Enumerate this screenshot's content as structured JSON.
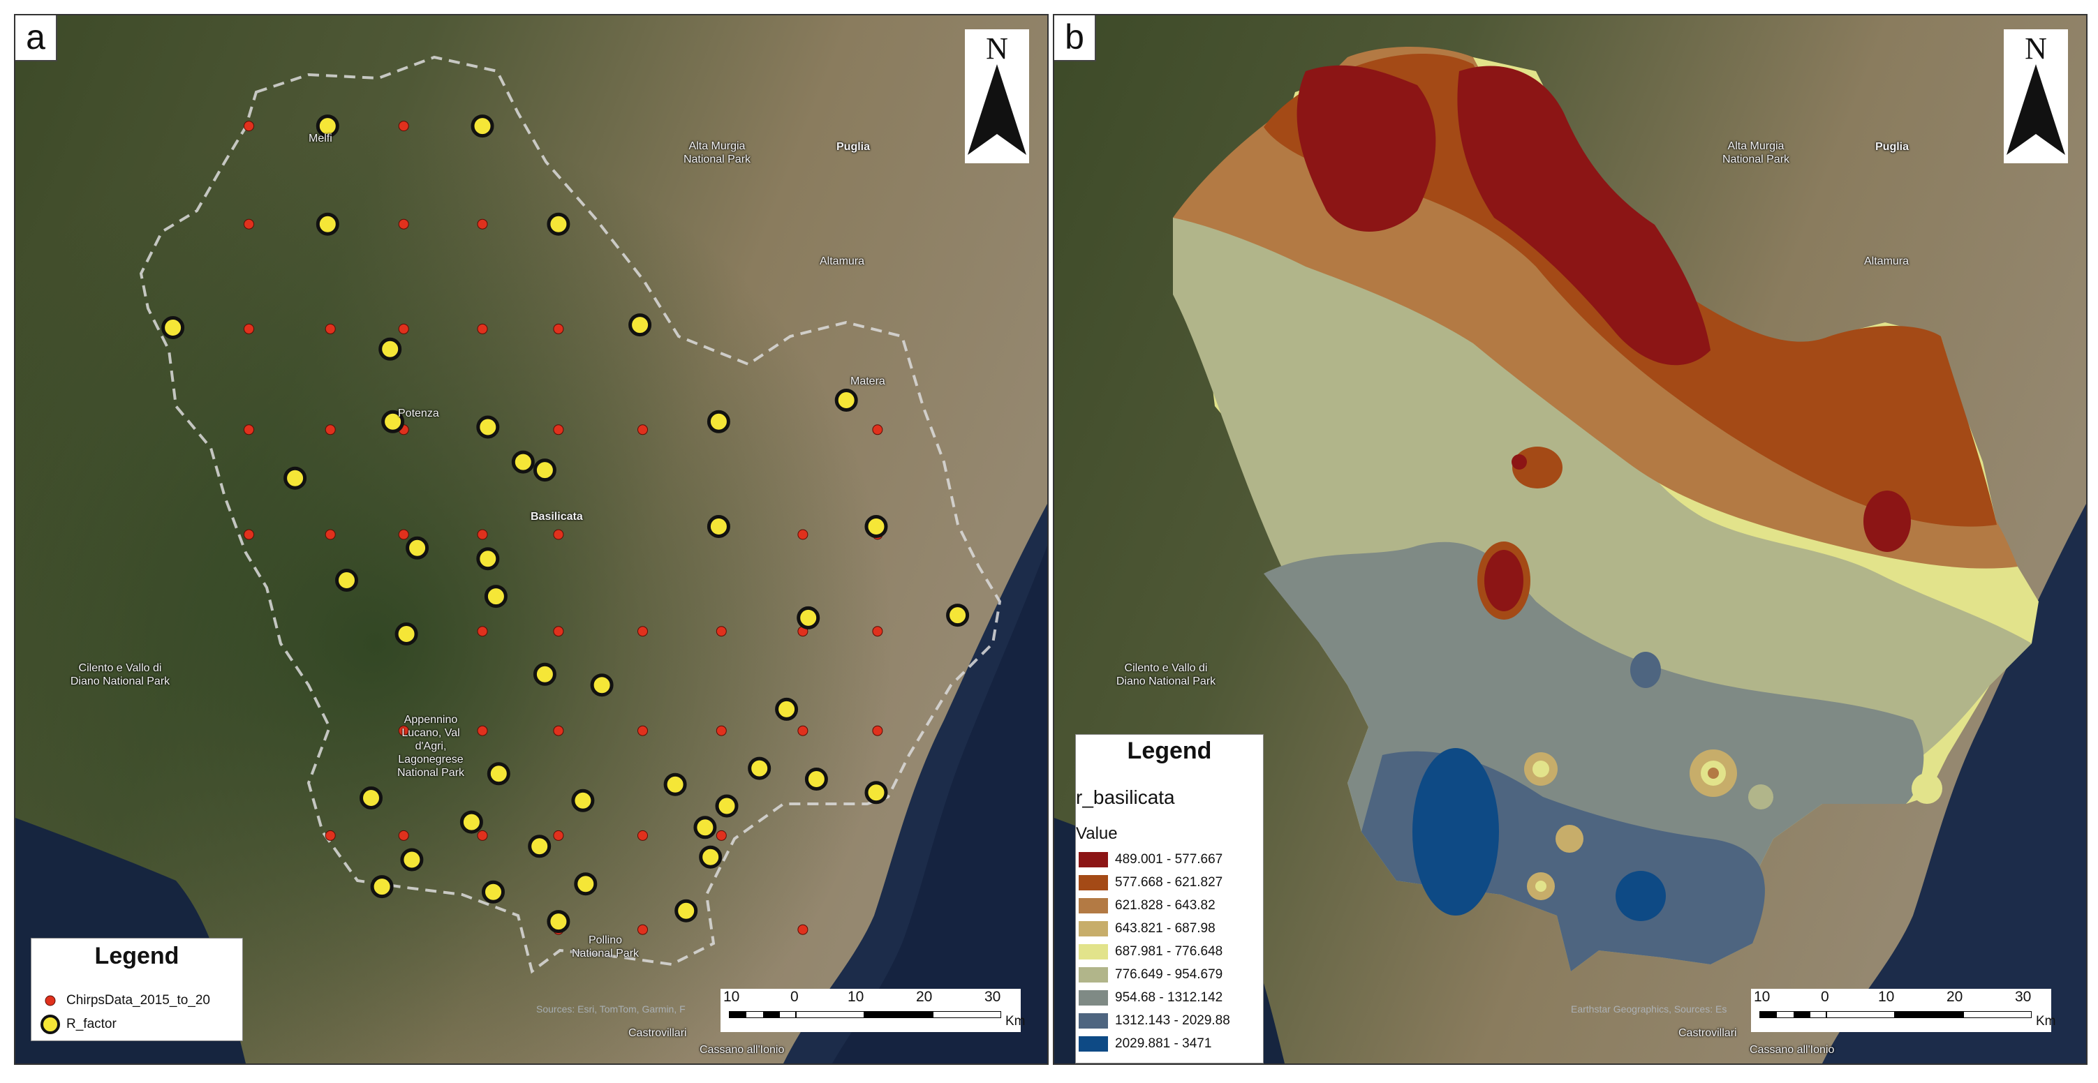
{
  "panel_a": {
    "letter": "a",
    "north_label": "N",
    "places": {
      "melfi": "Melfi",
      "potenza": "Potenza",
      "basilicata": "Basilicata",
      "matera": "Matera",
      "altamura": "Altamura",
      "puglia": "Puglia",
      "alta_murgia": "Alta Murgia National Park",
      "cilento": "Cilento e Vallo di Diano National Park",
      "appennino": "Appennino Lucano, Val d'Agri, Lagonegrese National Park",
      "pollino": "Pollino National Park",
      "castrovillari": "Castrovillari",
      "cassano": "Cassano all'Ionio"
    },
    "attribution": "Sources: Esri, TomTom, Garmin, F",
    "legend": {
      "title": "Legend",
      "items": [
        "ChirpsData_2015_to_20",
        "R_factor"
      ]
    },
    "scale": {
      "ticks": [
        "10",
        "0",
        "10",
        "20",
        "30"
      ],
      "unit": "Km"
    }
  },
  "panel_b": {
    "letter": "b",
    "north_label": "N",
    "places": {
      "altamura": "Altamura",
      "puglia": "Puglia",
      "alta_murgia": "Alta Murgia National Park",
      "cilento": "Cilento e Vallo di Diano National Park",
      "castrovillari": "Castrovillari",
      "cassano": "Cassano all'Ionio"
    },
    "attribution": "Earthstar Geographics, Sources: Es",
    "legend": {
      "title": "Legend",
      "layer": "r_basilicata",
      "field": "Value",
      "classes": [
        {
          "label": "489.001 - 577.667",
          "color": "#8c1515"
        },
        {
          "label": "577.668 - 621.827",
          "color": "#a44a16"
        },
        {
          "label": "621.828 - 643.82",
          "color": "#b37a44"
        },
        {
          "label": "643.821 - 687.98",
          "color": "#c7ad6a"
        },
        {
          "label": "687.981 - 776.648",
          "color": "#e2e38b"
        },
        {
          "label": "776.649 - 954.679",
          "color": "#b1b58a"
        },
        {
          "label": "954.68 - 1312.142",
          "color": "#7f8a85"
        },
        {
          "label": "1312.143 - 2029.88",
          "color": "#4e6580"
        },
        {
          "label": "2029.881 - 3471",
          "color": "#0e4a85"
        }
      ]
    },
    "scale": {
      "ticks": [
        "10",
        "0",
        "10",
        "20",
        "30"
      ],
      "unit": "Km"
    }
  }
}
